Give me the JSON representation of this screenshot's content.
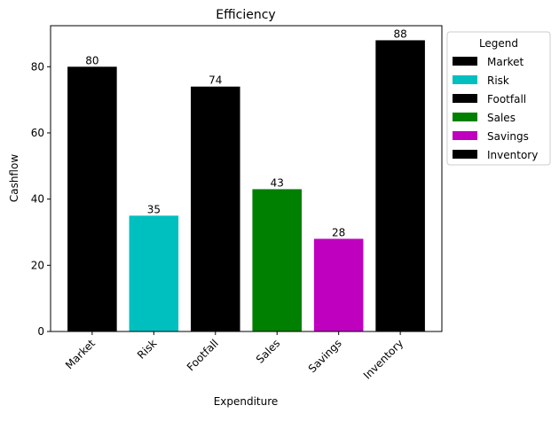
{
  "chart_data": {
    "type": "bar",
    "title": "Efficiency",
    "xlabel": "Expenditure",
    "ylabel": "Cashflow",
    "categories": [
      "Market",
      "Risk",
      "Footfall",
      "Sales",
      "Savings",
      "Inventory"
    ],
    "values": [
      80,
      35,
      74,
      43,
      28,
      88
    ],
    "colors": [
      "#000000",
      "#00bfbf",
      "#000000",
      "#008000",
      "#bf00bf",
      "#000000"
    ],
    "ylim": [
      0,
      92.4
    ],
    "yticks": [
      0,
      20,
      40,
      60,
      80
    ],
    "grid": false,
    "legend": {
      "title": "Legend",
      "placement": "outside-top-right",
      "entries": [
        "Market",
        "Risk",
        "Footfall",
        "Sales",
        "Savings",
        "Inventory"
      ]
    }
  }
}
